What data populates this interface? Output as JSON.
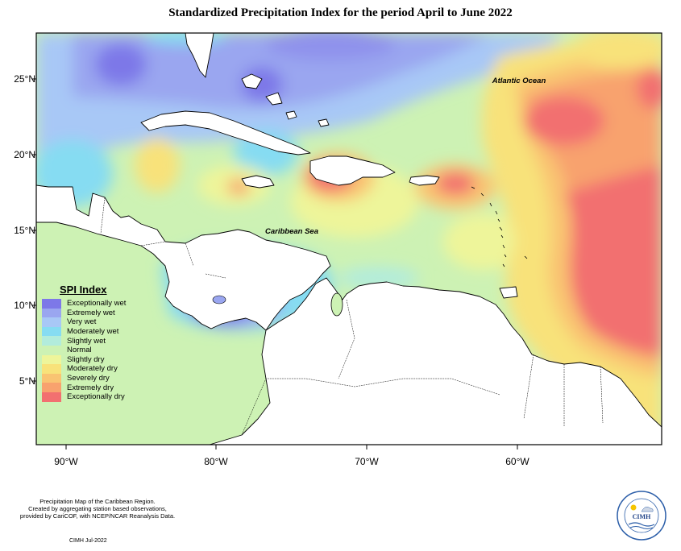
{
  "title": "Standardized Precipitation Index for the period April to June 2022",
  "latitude_labels": [
    "25°N",
    "20°N",
    "15°N",
    "10°N",
    "5°N"
  ],
  "longitude_labels": [
    "90°W",
    "80°W",
    "70°W",
    "60°W"
  ],
  "place_labels": {
    "atlantic": "Atlantic Ocean",
    "caribbean": "Caribbean Sea"
  },
  "legend": {
    "title": "SPI Index",
    "items": [
      {
        "label": "Exceptionally wet",
        "color": "#7d78e8"
      },
      {
        "label": "Extremely wet",
        "color": "#9aa6f0"
      },
      {
        "label": "Very wet",
        "color": "#a8c8f6"
      },
      {
        "label": "Moderately wet",
        "color": "#86dcf2"
      },
      {
        "label": "Slightly wet",
        "color": "#b2ecdc"
      },
      {
        "label": "Normal",
        "color": "#cdf2b4"
      },
      {
        "label": "Slightly dry",
        "color": "#eef59a"
      },
      {
        "label": "Moderately dry",
        "color": "#f8e27a"
      },
      {
        "label": "Severely dry",
        "color": "#f9c472"
      },
      {
        "label": "Extremely dry",
        "color": "#f8a26e"
      },
      {
        "label": "Exceptionally dry",
        "color": "#f27070"
      }
    ]
  },
  "credits": [
    "Precipitation Map of the Caribbean Region.",
    "Created by aggregating station based observations,",
    "provided by CariCOF, with NCEP/NCAR Reanalysis Data."
  ],
  "stamp": "CIMH Jul-2022",
  "logo": {
    "text": "CIMH",
    "ring_text": "Caribbean Institute for Meteorology and Hydrology"
  }
}
